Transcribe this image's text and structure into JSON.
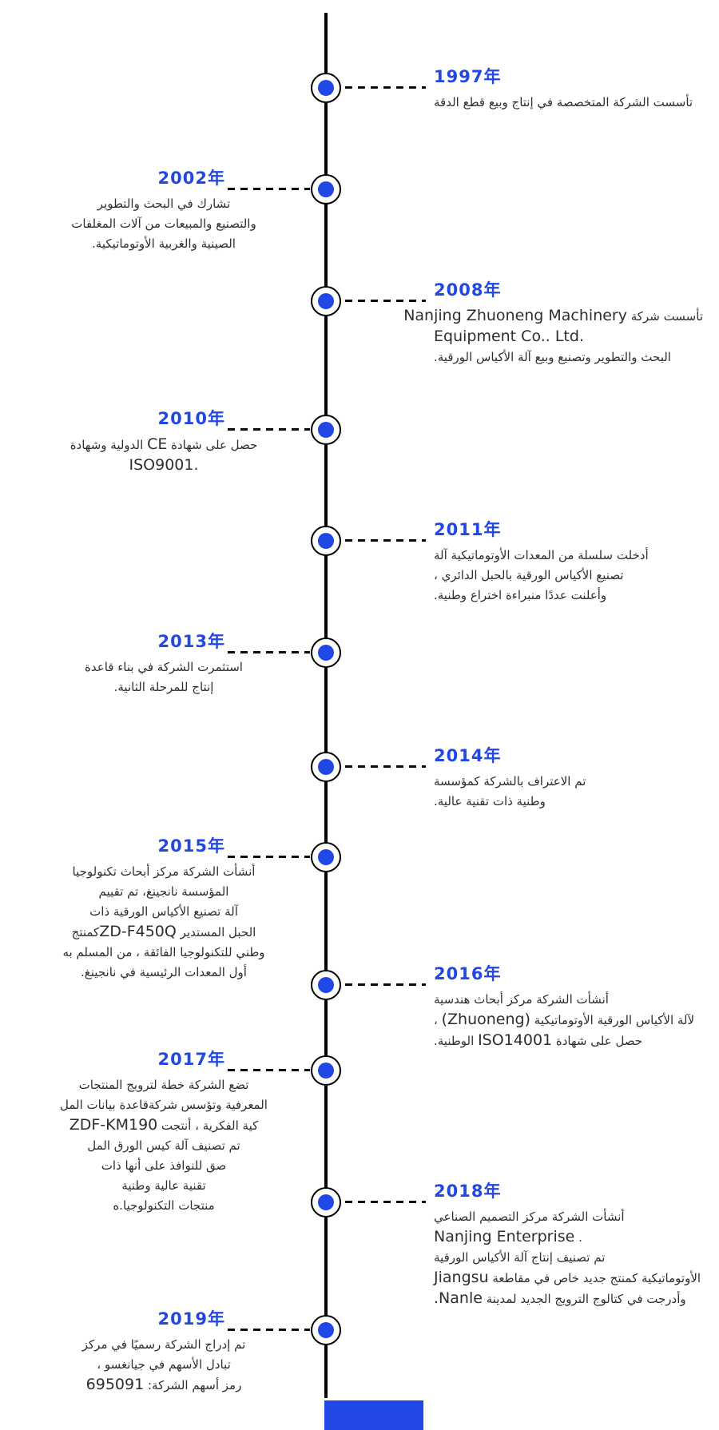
{
  "colors": {
    "accent_blue": "#2148e4",
    "axis_black": "#000000",
    "body_text": "#2e2e2e",
    "background": "#ffffff"
  },
  "footer": {
    "accent_bar": "solid blue rectangle at bottom of timeline"
  },
  "timeline": {
    "entries": [
      {
        "year": "1997年",
        "side": "right",
        "lines": [
          {
            "dir": "rtl",
            "segs": [
              {
                "t": "تأسست الشركة المتخصصة في إنتاج وبيع قطع الدقة"
              }
            ]
          }
        ]
      },
      {
        "year": "2002年",
        "side": "left",
        "lines": [
          {
            "dir": "rtl",
            "segs": [
              {
                "t": "تشارك في البحث والتطوير"
              }
            ]
          },
          {
            "dir": "rtl",
            "segs": [
              {
                "t": "والتصنيع والمبيعات من آلات المغلفات"
              }
            ]
          },
          {
            "dir": "rtl",
            "segs": [
              {
                "t": "الصينية والغربية الأوتوماتيكية."
              }
            ]
          }
        ]
      },
      {
        "year": "2008年",
        "side": "right",
        "lines": [
          {
            "dir": "rtl",
            "segs": [
              {
                "t": "تأسست شركة "
              },
              {
                "t": "Nanjing Zhuoneng Machinery",
                "em": true
              }
            ]
          },
          {
            "dir": "ltr",
            "segs": [
              {
                "t": "Equipment Co.. Ltd.",
                "em": true
              }
            ]
          },
          {
            "dir": "rtl",
            "segs": [
              {
                "t": "البحث والتطوير وتصنيع وبيع آلة الأكياس الورقية."
              }
            ]
          }
        ]
      },
      {
        "year": "2010年",
        "side": "left",
        "lines": [
          {
            "dir": "rtl",
            "segs": [
              {
                "t": "حصل على شهادة "
              },
              {
                "t": "CE",
                "em": true
              },
              {
                "t": " الدولية وشهادة"
              }
            ]
          },
          {
            "dir": "ltr",
            "segs": [
              {
                "t": "ISO9001.",
                "em": true
              }
            ]
          }
        ]
      },
      {
        "year": "2011年",
        "side": "right",
        "lines": [
          {
            "dir": "rtl",
            "segs": [
              {
                "t": "أدخلت سلسلة من المعدات الأوتوماتيكية آلة"
              }
            ]
          },
          {
            "dir": "rtl",
            "segs": [
              {
                "t": "تصنيع الأكياس الورقية بالحبل الدائري ،"
              }
            ]
          },
          {
            "dir": "rtl",
            "segs": [
              {
                "t": "وأعلنت عددًا منبراءة اختراع وطنية."
              }
            ]
          }
        ]
      },
      {
        "year": "2013年",
        "side": "left",
        "lines": [
          {
            "dir": "rtl",
            "segs": [
              {
                "t": "استثمرت الشركة في بناء قاعدة"
              }
            ]
          },
          {
            "dir": "rtl",
            "segs": [
              {
                "t": "إنتاج للمرحلة الثانية."
              }
            ]
          }
        ]
      },
      {
        "year": "2014年",
        "side": "right",
        "lines": [
          {
            "dir": "rtl",
            "segs": [
              {
                "t": "تم الاعتراف بالشركة كمؤسسة"
              }
            ]
          },
          {
            "dir": "rtl",
            "segs": [
              {
                "t": "وطنية ذات تقنية عالية."
              }
            ]
          }
        ]
      },
      {
        "year": "2015年",
        "side": "left",
        "lines": [
          {
            "dir": "rtl",
            "segs": [
              {
                "t": "أنشأت الشركة مركز أبحاث تكنولوجيا"
              }
            ]
          },
          {
            "dir": "rtl",
            "segs": [
              {
                "t": "المؤسسة نانجينغ، تم تقييم"
              }
            ]
          },
          {
            "dir": "rtl",
            "segs": [
              {
                "t": "آلة تصنيع الأكياس الورقية ذات"
              }
            ]
          },
          {
            "dir": "rtl",
            "segs": [
              {
                "t": "الحبل المستدير "
              },
              {
                "t": "ZD-F450Q",
                "em": true
              },
              {
                "t": "كمنتج"
              }
            ]
          },
          {
            "dir": "rtl",
            "segs": [
              {
                "t": "وطني للتكنولوجيا الفائقة ، من المسلم به"
              }
            ]
          },
          {
            "dir": "rtl",
            "segs": [
              {
                "t": "أول المعدات الرئيسية في نانجينغ."
              }
            ]
          }
        ]
      },
      {
        "year": "2016年",
        "side": "right",
        "lines": [
          {
            "dir": "rtl",
            "segs": [
              {
                "t": "أنشأت الشركة مركز أبحاث هندسية"
              }
            ]
          },
          {
            "dir": "rtl",
            "segs": [
              {
                "t": "لآلة الأكياس الورقية الأوتوماتيكية "
              },
              {
                "t": "(Zhuoneng)",
                "em": true
              },
              {
                "t": " ،"
              }
            ]
          },
          {
            "dir": "rtl",
            "segs": [
              {
                "t": "حصل على شهادة "
              },
              {
                "t": "ISO14001",
                "em": true
              },
              {
                "t": " الوطنية."
              }
            ]
          }
        ]
      },
      {
        "year": "2017年",
        "side": "left",
        "lines": [
          {
            "dir": "rtl",
            "segs": [
              {
                "t": "تضع الشركة خطة لترويج المنتجات"
              }
            ]
          },
          {
            "dir": "rtl",
            "segs": [
              {
                "t": "المعرفية وتؤسس شركةقاعدة بيانات المل"
              }
            ]
          },
          {
            "dir": "rtl",
            "segs": [
              {
                "t": "كية الفكرية ، أنتجت "
              },
              {
                "t": "ZDF-KM190",
                "em": true
              }
            ]
          },
          {
            "dir": "rtl",
            "segs": [
              {
                "t": "تم تصنيف آلة كيس الورق المل"
              }
            ]
          },
          {
            "dir": "rtl",
            "segs": [
              {
                "t": "صق للنوافذ على أنها ذات"
              }
            ]
          },
          {
            "dir": "rtl",
            "segs": [
              {
                "t": "تقنية عالية وطنية"
              }
            ]
          },
          {
            "dir": "rtl",
            "segs": [
              {
                "t": "منتجات التكنولوجيا.ه"
              }
            ]
          }
        ]
      },
      {
        "year": "2018年",
        "side": "right",
        "lines": [
          {
            "dir": "rtl",
            "segs": [
              {
                "t": "أنشأت الشركة مركز التصميم الصناعي"
              }
            ]
          },
          {
            "dir": "ltr",
            "segs": [
              {
                "t": "Nanjing Enterprise",
                "em": true
              },
              {
                "t": " ."
              }
            ]
          },
          {
            "dir": "rtl",
            "segs": [
              {
                "t": "تم تصنيف إنتاج آلة الأكياس الورقية"
              }
            ]
          },
          {
            "dir": "rtl",
            "segs": [
              {
                "t": "الأوتوماتيكية كمنتج جديد خاص في مقاطعة "
              },
              {
                "t": "Jiangsu",
                "em": true
              }
            ]
          },
          {
            "dir": "rtl",
            "segs": [
              {
                "t": "وأدرجت في كتالوج الترويج الجديد لمدينة "
              },
              {
                "t": "Nanle.",
                "em": true
              }
            ]
          }
        ]
      },
      {
        "year": "2019年",
        "side": "left",
        "lines": [
          {
            "dir": "rtl",
            "segs": [
              {
                "t": "تم إدراج الشركة رسميًا في مركز"
              }
            ]
          },
          {
            "dir": "rtl",
            "segs": [
              {
                "t": "تبادل الأسهم في جيانغسو ،"
              }
            ]
          },
          {
            "dir": "rtl",
            "segs": [
              {
                "t": "رمز أسهم الشركة: "
              },
              {
                "t": "695091",
                "em": true
              }
            ]
          }
        ]
      }
    ]
  }
}
